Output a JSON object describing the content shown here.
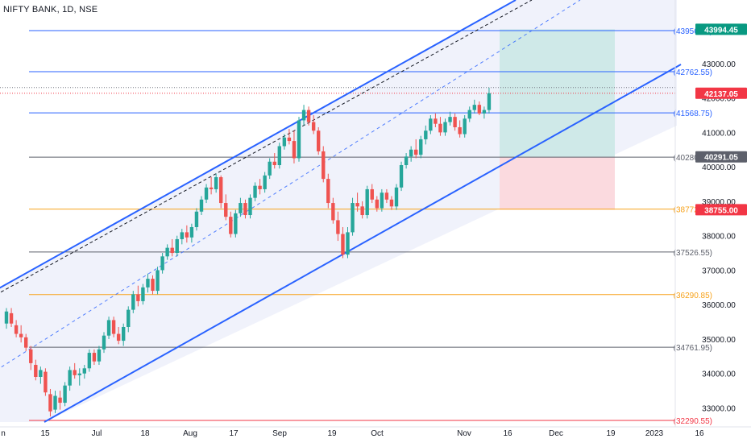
{
  "symbol_title": "NIFTY BANK, 1D, NSE",
  "colors": {
    "up": "#26a69a",
    "down": "#ef5350",
    "channel": "#2962ff",
    "channel_fill": "#eef1fb",
    "tp_zone": "#cfe9e8",
    "sl_zone": "#fbdadf",
    "hline_blue": "#2962ff",
    "hline_orange": "#f7a21b",
    "hline_dark": "#5d606b",
    "hline_red": "#f23645"
  },
  "chart_data": {
    "type": "candlestick",
    "y_axis": {
      "range": [
        32450,
        44400
      ],
      "tick_labels": [
        "43000.00",
        "42000.00",
        "41000.00",
        "40000.00",
        "39000.00",
        "38000.00",
        "37000.00",
        "36000.00",
        "35000.00",
        "34000.00",
        "33000.00"
      ],
      "tick_values": [
        43000,
        42000,
        41000,
        40000,
        39000,
        38000,
        37000,
        36000,
        35000,
        34000,
        33000
      ]
    },
    "x_axis": {
      "tick_labels": [
        "n",
        "15",
        "Jul",
        "18",
        "Aug",
        "17",
        "Sep",
        "19",
        "Oct",
        "Nov",
        "16",
        "Dec",
        "19",
        "2023",
        "16"
      ]
    },
    "horizontal_levels": [
      {
        "label": "(43956.35)",
        "value": 43956.35,
        "color": "hline_blue"
      },
      {
        "label": "(42762.55)",
        "value": 42762.55,
        "color": "hline_blue"
      },
      {
        "label": "(41568.75)",
        "value": 41568.75,
        "color": "hline_blue"
      },
      {
        "label": "(40280.70)",
        "value": 40280.7,
        "color": "hline_dark"
      },
      {
        "label": "(38772.70)",
        "value": 38772.7,
        "color": "hline_orange"
      },
      {
        "label": "(37526.55)",
        "value": 37526.55,
        "color": "hline_dark"
      },
      {
        "label": "(36290.85)",
        "value": 36290.85,
        "color": "hline_orange"
      },
      {
        "label": "(34761.95)",
        "value": 34761.95,
        "color": "hline_dark"
      },
      {
        "label": "(32290.55)",
        "value": 32290.55,
        "color": "hline_red"
      }
    ],
    "price_badges": [
      {
        "label": "43994.45",
        "value": 43994.45,
        "bg": "#089981"
      },
      {
        "label": "42137.05",
        "value": 42137.05,
        "bg": "#f23645"
      },
      {
        "label": "40291.05",
        "value": 40291.05,
        "bg": "#5d606b"
      },
      {
        "label": "38755.00",
        "value": 38755.0,
        "bg": "#f23645"
      }
    ],
    "candles": [
      [
        35450,
        35900,
        35300,
        35800
      ],
      [
        35750,
        35900,
        35350,
        35450
      ],
      [
        35400,
        35550,
        35050,
        35150
      ],
      [
        35150,
        35400,
        34900,
        35050
      ],
      [
        35050,
        35150,
        34650,
        34750
      ],
      [
        34700,
        34800,
        34100,
        34300
      ],
      [
        34250,
        34400,
        33800,
        33900
      ],
      [
        33900,
        34200,
        33700,
        34100
      ],
      [
        34050,
        34150,
        33350,
        33450
      ],
      [
        33400,
        33550,
        32750,
        32900
      ],
      [
        32950,
        33500,
        32850,
        33350
      ],
      [
        33300,
        33500,
        32950,
        33150
      ],
      [
        33150,
        33750,
        33050,
        33650
      ],
      [
        33650,
        34200,
        33500,
        34100
      ],
      [
        34100,
        34300,
        33850,
        33950
      ],
      [
        33950,
        34150,
        33650,
        34000
      ],
      [
        34000,
        34250,
        33850,
        34150
      ],
      [
        34150,
        34700,
        34050,
        34600
      ],
      [
        34600,
        34700,
        34250,
        34350
      ],
      [
        34350,
        34800,
        34250,
        34700
      ],
      [
        34700,
        35200,
        34600,
        35100
      ],
      [
        35100,
        35650,
        35000,
        35550
      ],
      [
        35550,
        35650,
        35050,
        35150
      ],
      [
        35150,
        35350,
        34850,
        34950
      ],
      [
        34950,
        35450,
        34800,
        35350
      ],
      [
        35350,
        35950,
        35200,
        35850
      ],
      [
        35850,
        36400,
        35750,
        36300
      ],
      [
        36300,
        36550,
        35950,
        36100
      ],
      [
        36100,
        36600,
        36000,
        36500
      ],
      [
        36500,
        36900,
        36350,
        36750
      ],
      [
        36750,
        36850,
        36300,
        36400
      ],
      [
        36400,
        37100,
        36300,
        37000
      ],
      [
        37000,
        37500,
        36900,
        37400
      ],
      [
        37400,
        37750,
        37300,
        37650
      ],
      [
        37650,
        37900,
        37400,
        37500
      ],
      [
        37500,
        38000,
        37400,
        37900
      ],
      [
        37900,
        38200,
        37750,
        38100
      ],
      [
        38100,
        38300,
        37800,
        37950
      ],
      [
        37950,
        38350,
        37800,
        38250
      ],
      [
        38250,
        38800,
        38150,
        38700
      ],
      [
        38700,
        39150,
        38600,
        39050
      ],
      [
        39050,
        39500,
        38950,
        39400
      ],
      [
        39400,
        39700,
        39200,
        39350
      ],
      [
        39350,
        39800,
        39250,
        39700
      ],
      [
        39700,
        39750,
        38800,
        38950
      ],
      [
        38950,
        39200,
        38450,
        38550
      ],
      [
        38550,
        38700,
        37950,
        38050
      ],
      [
        38050,
        38750,
        37950,
        38650
      ],
      [
        38650,
        39100,
        38550,
        38950
      ],
      [
        38950,
        39050,
        38500,
        38600
      ],
      [
        38600,
        39200,
        38500,
        39100
      ],
      [
        39100,
        39550,
        39000,
        39450
      ],
      [
        39450,
        39650,
        39200,
        39350
      ],
      [
        39350,
        39850,
        39250,
        39750
      ],
      [
        39750,
        40250,
        39650,
        40150
      ],
      [
        40150,
        40400,
        39950,
        40050
      ],
      [
        40050,
        40700,
        39950,
        40600
      ],
      [
        40600,
        40950,
        40500,
        40850
      ],
      [
        40850,
        41100,
        40650,
        40750
      ],
      [
        40750,
        41050,
        40100,
        40250
      ],
      [
        40250,
        41450,
        40150,
        41350
      ],
      [
        41350,
        41800,
        41200,
        41650
      ],
      [
        41650,
        41750,
        41200,
        41300
      ],
      [
        41300,
        41500,
        40950,
        41050
      ],
      [
        41050,
        41150,
        40350,
        40450
      ],
      [
        40450,
        40600,
        39550,
        39650
      ],
      [
        39650,
        39800,
        38800,
        38950
      ],
      [
        38950,
        39100,
        38350,
        38450
      ],
      [
        38450,
        38700,
        37850,
        38050
      ],
      [
        38050,
        38250,
        37350,
        37450
      ],
      [
        37450,
        38250,
        37350,
        38100
      ],
      [
        38100,
        39100,
        38000,
        38950
      ],
      [
        38950,
        39250,
        38700,
        38850
      ],
      [
        38850,
        39000,
        38500,
        38600
      ],
      [
        38600,
        39450,
        38500,
        39350
      ],
      [
        39350,
        39500,
        38950,
        39050
      ],
      [
        39050,
        39150,
        38700,
        38800
      ],
      [
        38800,
        39350,
        38700,
        39250
      ],
      [
        39250,
        39350,
        38950,
        39050
      ],
      [
        39050,
        39150,
        38750,
        38850
      ],
      [
        38850,
        39500,
        38750,
        39400
      ],
      [
        39400,
        40150,
        39300,
        40050
      ],
      [
        40050,
        40400,
        39950,
        40300
      ],
      [
        40300,
        40600,
        40150,
        40500
      ],
      [
        40500,
        40800,
        40250,
        40350
      ],
      [
        40350,
        40900,
        40250,
        40800
      ],
      [
        40800,
        41200,
        40650,
        41050
      ],
      [
        41050,
        41500,
        40950,
        41400
      ],
      [
        41400,
        41550,
        41150,
        41250
      ],
      [
        41250,
        41450,
        40900,
        41000
      ],
      [
        41000,
        41400,
        40900,
        41300
      ],
      [
        41300,
        41600,
        41200,
        41450
      ],
      [
        41450,
        41550,
        41050,
        41150
      ],
      [
        41150,
        41350,
        40850,
        40950
      ],
      [
        40950,
        41500,
        40850,
        41400
      ],
      [
        41400,
        41750,
        41300,
        41650
      ],
      [
        41650,
        41950,
        41550,
        41800
      ],
      [
        41800,
        41900,
        41500,
        41550
      ],
      [
        41550,
        41750,
        41400,
        41650
      ],
      [
        41650,
        42300,
        41550,
        42137.05
      ]
    ]
  }
}
